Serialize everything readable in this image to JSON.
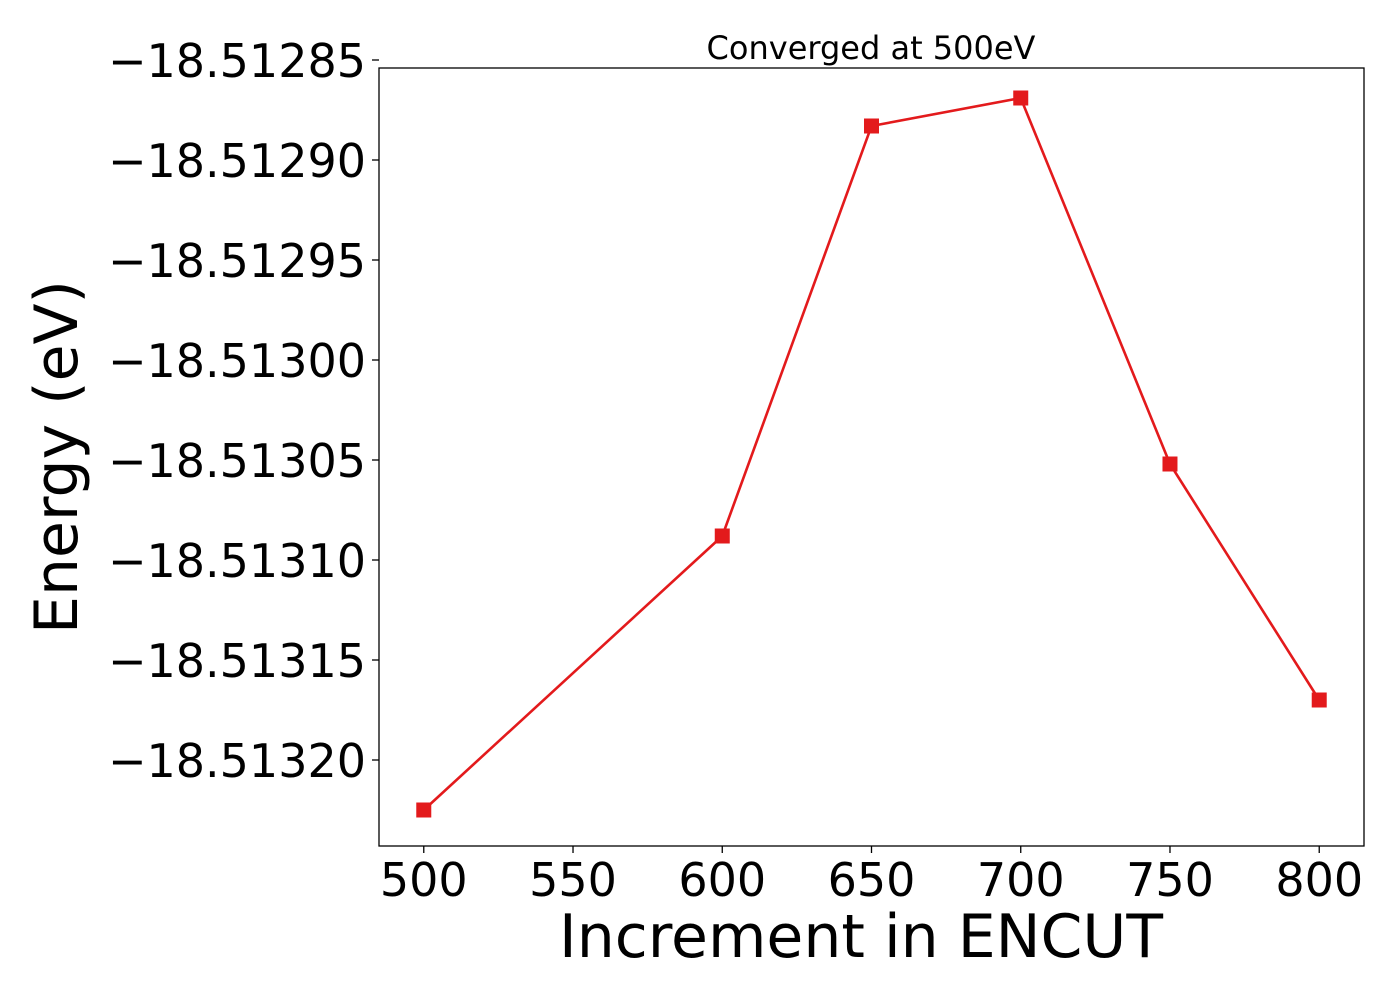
{
  "chart_data": {
    "type": "line",
    "title": "Converged at 500eV",
    "xlabel": "Increment in ENCUT",
    "ylabel": "Energy (eV)",
    "x": [
      500,
      600,
      650,
      700,
      750,
      800
    ],
    "series": [
      {
        "values": [
          -18.513225,
          -18.513088,
          -18.512883,
          -18.512869,
          -18.513052,
          -18.51317
        ],
        "color": "#e31a1c",
        "marker": "square"
      }
    ],
    "xlim": [
      485,
      815
    ],
    "ylim": [
      -18.513243,
      -18.512854
    ],
    "x_ticks": [
      500,
      550,
      600,
      650,
      700,
      750,
      800
    ],
    "x_tick_labels": [
      "500",
      "550",
      "600",
      "650",
      "700",
      "750",
      "800"
    ],
    "y_ticks": [
      -18.51285,
      -18.5129,
      -18.51295,
      -18.513,
      -18.51305,
      -18.5131,
      -18.51315,
      -18.5132
    ],
    "y_tick_labels": [
      "−18.51285",
      "−18.51290",
      "−18.51295",
      "−18.51300",
      "−18.51305",
      "−18.51310",
      "−18.51315",
      "−18.51320"
    ],
    "grid": false,
    "legend": "none"
  }
}
